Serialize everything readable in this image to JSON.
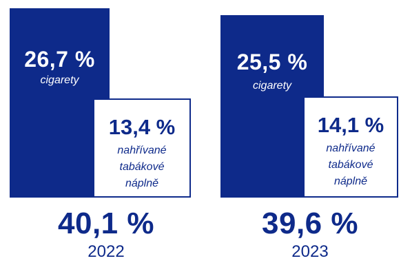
{
  "colors": {
    "accent": "#0e2a8a",
    "background": "#ffffff"
  },
  "chart_data": {
    "type": "bar",
    "categories": [
      "2022",
      "2023"
    ],
    "series": [
      {
        "name": "cigarety",
        "values": [
          26.7,
          25.5
        ],
        "labels": [
          "26,7 %",
          "25,5 %"
        ]
      },
      {
        "name": "nahřívané tabákové náplně",
        "values": [
          13.4,
          14.1
        ],
        "labels": [
          "13,4 %",
          "14,1 %"
        ]
      }
    ],
    "totals": [
      40.1,
      39.6
    ],
    "total_labels": [
      "40,1 %",
      "39,6 %"
    ]
  },
  "groups": [
    {
      "year": "2022",
      "total": "40,1 %",
      "cigarettes": {
        "value": "26,7 %",
        "label": "cigarety"
      },
      "heated": {
        "value": "13,4 %",
        "label_lines": [
          "nahřívané",
          "tabákové",
          "náplně"
        ]
      }
    },
    {
      "year": "2023",
      "total": "39,6 %",
      "cigarettes": {
        "value": "25,5 %",
        "label": "cigarety"
      },
      "heated": {
        "value": "14,1 %",
        "label_lines": [
          "nahřívané",
          "tabákové",
          "náplně"
        ]
      }
    }
  ]
}
